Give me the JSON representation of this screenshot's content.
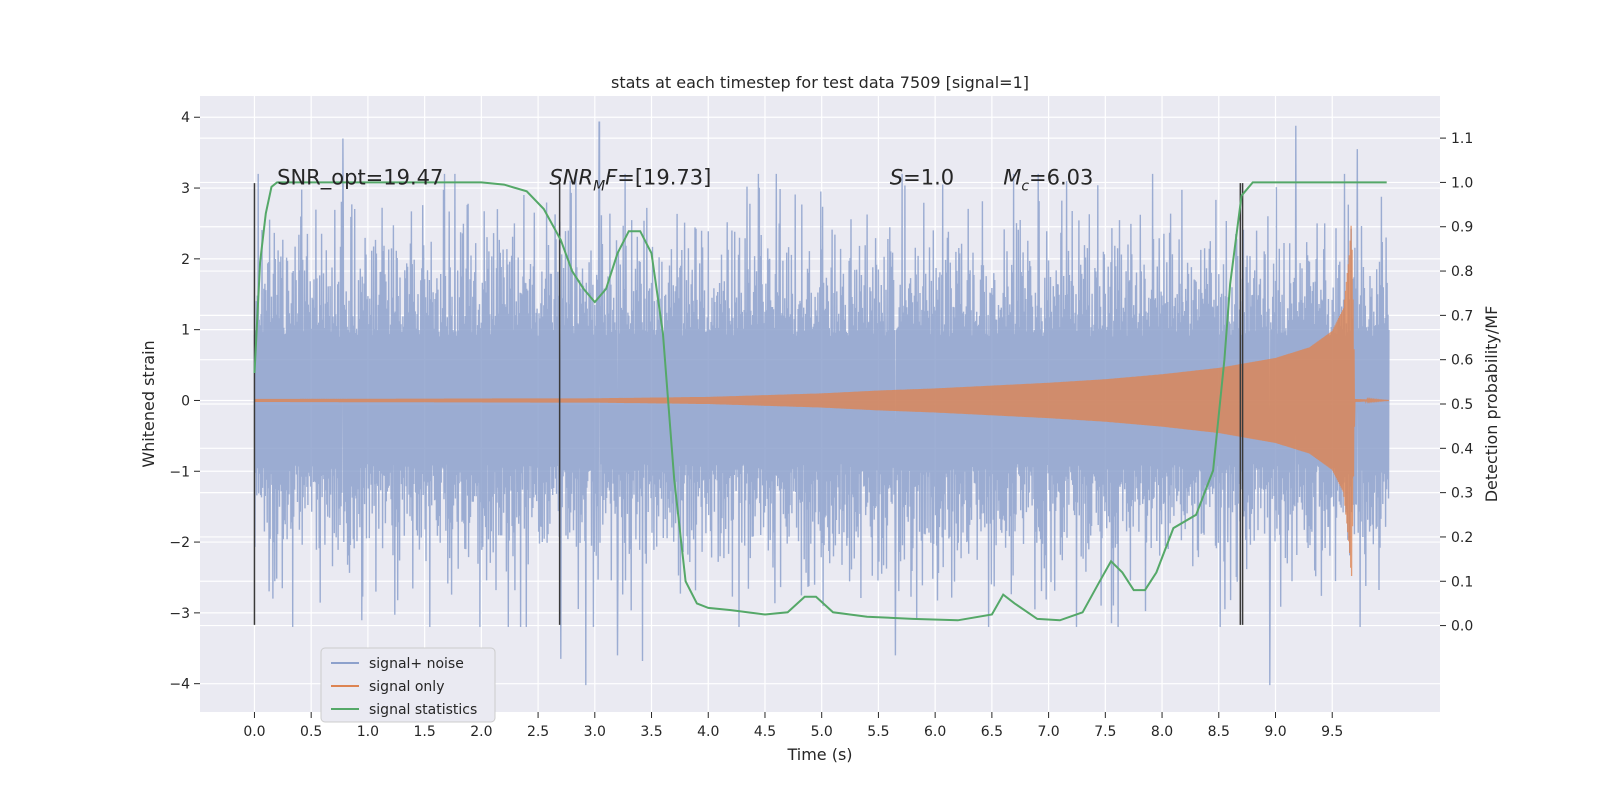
{
  "chart_data": {
    "type": "line",
    "title": "stats at each timestep for test data 7509 [signal=1]",
    "xlabel": "Time (s)",
    "ylabel": "Whitened strain",
    "ylabel_right": "Detection probability/MF",
    "xlim": [
      -0.48,
      10.45
    ],
    "ylim": [
      -4.4,
      4.3
    ],
    "ylim_right": [
      -0.195,
      1.195
    ],
    "x_ticks": [
      0.0,
      0.5,
      1.0,
      1.5,
      2.0,
      2.5,
      3.0,
      3.5,
      4.0,
      4.5,
      5.0,
      5.5,
      6.0,
      6.5,
      7.0,
      7.5,
      8.0,
      8.5,
      9.0,
      9.5
    ],
    "x_tick_labels": [
      "0.0",
      "0.5",
      "1.0",
      "1.5",
      "2.0",
      "2.5",
      "3.0",
      "3.5",
      "4.0",
      "4.5",
      "5.0",
      "5.5",
      "6.0",
      "6.5",
      "7.0",
      "7.5",
      "8.0",
      "8.5",
      "9.0",
      "9.5"
    ],
    "y_ticks": [
      -4,
      -3,
      -2,
      -1,
      0,
      1,
      2,
      3,
      4
    ],
    "y_tick_labels": [
      "−4",
      "−3",
      "−2",
      "−1",
      "0",
      "1",
      "2",
      "3",
      "4"
    ],
    "y_right_ticks": [
      0.0,
      0.1,
      0.2,
      0.3,
      0.4,
      0.5,
      0.6,
      0.7,
      0.8,
      0.9,
      1.0,
      1.1
    ],
    "y_right_tick_labels": [
      "0.0",
      "0.1",
      "0.2",
      "0.3",
      "0.4",
      "0.5",
      "0.6",
      "0.7",
      "0.8",
      "0.9",
      "1.0",
      "1.1"
    ],
    "grid": true,
    "legend_position": "lower-left",
    "colors": {
      "noise": "#8da1cc",
      "signal": "#dd8452",
      "stats": "#55a868",
      "vline": "#3a3a3a",
      "plot_bg": "#eaeaf2",
      "grid": "#ffffff"
    },
    "series": [
      {
        "name": "signal+ noise",
        "x_range": [
          0.0,
          10.0
        ],
        "approx_envelope": [
          -2.5,
          2.5
        ],
        "notable_peaks": [
          [
            0.78,
            3.7
          ],
          [
            3.04,
            3.93
          ],
          [
            9.18,
            3.88
          ],
          [
            9.72,
            3.55
          ],
          [
            2.7,
            -3.65
          ],
          [
            3.2,
            -3.6
          ],
          [
            3.42,
            -3.68
          ],
          [
            5.65,
            -3.6
          ],
          [
            8.95,
            -4.02
          ],
          [
            2.92,
            -4.02
          ]
        ]
      },
      {
        "name": "signal only",
        "x": [
          0.0,
          3.0,
          4.0,
          5.0,
          5.5,
          6.0,
          6.5,
          7.0,
          7.5,
          8.0,
          8.5,
          9.0,
          9.3,
          9.5,
          9.6,
          9.65,
          9.67,
          9.7,
          10.0
        ],
        "amplitude": [
          0.02,
          0.03,
          0.05,
          0.1,
          0.14,
          0.17,
          0.21,
          0.25,
          0.3,
          0.37,
          0.46,
          0.6,
          0.75,
          0.98,
          1.3,
          2.05,
          2.55,
          0.02,
          0.0
        ]
      },
      {
        "name": "signal statistics",
        "axis": "right",
        "x": [
          0.0,
          0.05,
          0.1,
          0.15,
          0.2,
          0.3,
          0.5,
          1.0,
          1.5,
          2.0,
          2.2,
          2.4,
          2.55,
          2.7,
          2.8,
          2.9,
          3.0,
          3.1,
          3.2,
          3.3,
          3.4,
          3.5,
          3.6,
          3.7,
          3.8,
          3.9,
          4.0,
          4.2,
          4.5,
          4.7,
          4.85,
          4.95,
          5.1,
          5.4,
          5.8,
          6.2,
          6.5,
          6.6,
          6.7,
          6.9,
          7.1,
          7.3,
          7.45,
          7.55,
          7.65,
          7.75,
          7.85,
          7.95,
          8.1,
          8.3,
          8.45,
          8.55,
          8.6,
          8.7,
          8.8,
          8.9,
          9.1,
          9.5,
          9.98
        ],
        "y": [
          0.57,
          0.82,
          0.93,
          0.99,
          1.0,
          1.0,
          1.0,
          1.0,
          1.0,
          1.0,
          0.995,
          0.98,
          0.94,
          0.87,
          0.8,
          0.76,
          0.73,
          0.76,
          0.84,
          0.89,
          0.89,
          0.84,
          0.66,
          0.33,
          0.1,
          0.05,
          0.04,
          0.035,
          0.025,
          0.03,
          0.065,
          0.065,
          0.03,
          0.02,
          0.015,
          0.012,
          0.025,
          0.07,
          0.05,
          0.015,
          0.012,
          0.03,
          0.1,
          0.145,
          0.12,
          0.08,
          0.08,
          0.12,
          0.22,
          0.25,
          0.35,
          0.6,
          0.77,
          0.97,
          1.0,
          1.0,
          1.0,
          1.0,
          1.0
        ]
      }
    ],
    "vlines": [
      0.0,
      2.69,
      8.69,
      8.71
    ],
    "annotations": [
      {
        "text": "SNR_opt=19.47",
        "x": 0.2,
        "y": 3.05
      },
      {
        "text": "SNR",
        "sub": "M",
        "suffix": "F=[19.73]",
        "x": 2.6,
        "y": 3.05
      },
      {
        "text": "S",
        "suffix": "=1.0",
        "x": 5.6,
        "y": 3.05
      },
      {
        "text": "M",
        "sub": "c",
        "suffix": "=6.03",
        "x": 6.6,
        "y": 3.05
      }
    ]
  }
}
